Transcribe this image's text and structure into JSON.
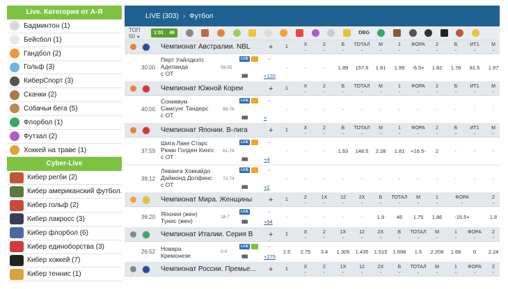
{
  "sidebar": {
    "header": "Live. Категория от А-Я",
    "items": [
      {
        "label": "Бадминтон (1)",
        "icon": "badminton-icon",
        "color": "#d9d9d9"
      },
      {
        "label": "Бейсбол (1)",
        "icon": "baseball-icon",
        "color": "#e8e8e8"
      },
      {
        "label": "Гандбол (2)",
        "icon": "handball-icon",
        "color": "#f09a3a"
      },
      {
        "label": "Гольф (3)",
        "icon": "golf-icon",
        "color": "#6bb6e0"
      },
      {
        "label": "КиберСпорт (3)",
        "icon": "gamepad-icon",
        "color": "#555555"
      },
      {
        "label": "Скачки (2)",
        "icon": "horse-racing-icon",
        "color": "#a57b4a"
      },
      {
        "label": "Собачьи бега (5)",
        "icon": "dog-racing-icon",
        "color": "#b98a56"
      },
      {
        "label": "Флорбол (1)",
        "icon": "floorball-icon",
        "color": "#3aa66a"
      },
      {
        "label": "Футзал (2)",
        "icon": "futsal-icon",
        "color": "#b05cc8"
      },
      {
        "label": "Хоккей на траве (1)",
        "icon": "field-hockey-icon",
        "color": "#e2a33a"
      }
    ],
    "cyber_header": "Cyber-Live",
    "cyber_items": [
      {
        "label": "Кибер регби (2)",
        "icon": "cyber-rugby-icon",
        "color": "#c0563a"
      },
      {
        "label": "Кибер американский футбол...",
        "icon": "cyber-american-football-icon",
        "color": "#5a7a3a"
      },
      {
        "label": "Кибер гольф (2)",
        "icon": "cyber-golf-icon",
        "color": "#c84a3a"
      },
      {
        "label": "Кибер лакросс (3)",
        "icon": "cyber-lacrosse-icon",
        "color": "#3a3a5a"
      },
      {
        "label": "Кибер флорбол (6)",
        "icon": "cyber-floorball-icon",
        "color": "#4a6aa0"
      },
      {
        "label": "Кибер единоборства (3)",
        "icon": "cyber-mma-icon",
        "color": "#d33a3a"
      },
      {
        "label": "Кибер хоккей (7)",
        "icon": "cyber-hockey-icon",
        "color": "#222222"
      },
      {
        "label": "Кибер теннис (1)",
        "icon": "cyber-tennis-icon",
        "color": "#d9a33a"
      }
    ]
  },
  "topbar": {
    "live_label": "LIVE (303)",
    "separator": "›",
    "sport": "Футбол"
  },
  "filterbar": {
    "select_value": "ТОП 50",
    "badge_left": "1:01",
    "badge_right": "46",
    "icons": [
      {
        "name": "soccer-filter-icon",
        "color": "#888888"
      },
      {
        "name": "hockey-stick-filter-icon",
        "color": "#b8694a"
      },
      {
        "name": "basketball-filter-icon",
        "color": "#e8823a"
      },
      {
        "name": "tennis-filter-icon",
        "color": "#9fd14a"
      },
      {
        "name": "handball-filter-icon",
        "color": "#f0c23a"
      },
      {
        "name": "table-tennis-filter-icon",
        "color": "#dddddd"
      },
      {
        "name": "volleyball-filter-icon",
        "color": "#f4a03a"
      },
      {
        "name": "badminton-filter-icon",
        "color": "#e84a3a"
      },
      {
        "name": "futsal-filter-icon",
        "color": "#b05cc8"
      },
      {
        "name": "billiards-filter-icon",
        "color": "#cccccc"
      },
      {
        "name": "cricket-filter-icon",
        "color": "#e2c23a"
      },
      {
        "name": "dbg-filter-icon",
        "color": "#333333",
        "text": "DBG"
      },
      {
        "name": "golf-filter-icon",
        "color": "#3aa66a"
      },
      {
        "name": "racing-filter-icon",
        "color": "#8a5a3a"
      },
      {
        "name": "motorsport-filter-icon",
        "color": "#555555"
      },
      {
        "name": "mma-filter-icon",
        "color": "#333333"
      },
      {
        "name": "rugby-filter-icon",
        "color": "#222222"
      },
      {
        "name": "cycling-filter-icon",
        "color": "#c0563a"
      },
      {
        "name": "star-filter-icon",
        "color": "#e8c23a"
      }
    ]
  },
  "sections": [
    {
      "league": "Чемпионат Австралии. NBL",
      "sport_icon": "basketball-icon",
      "sport_color": "#e8823a",
      "flag_color": "#2b4a9a",
      "columns": [
        "1",
        "X",
        "2",
        "Б",
        "ТОТАЛ",
        "М",
        "1",
        "ФОРА",
        "2",
        "Б",
        "ИТ1",
        "М"
      ],
      "events": [
        {
          "time": "30:00",
          "team1": "Перт Уайлдкэтс",
          "team2": "Аделаида",
          "extra": "с ОТ",
          "score": "59-55",
          "more": "+120",
          "tags": [
            "live",
            "tv"
          ],
          "odds": [
            "-",
            "-",
            "-",
            "1.89",
            "157.5",
            "1.91",
            "1.99",
            "-6.5+",
            "1.82",
            "1.78",
            "81.5",
            "1.97"
          ]
        }
      ]
    },
    {
      "league": "Чемпионат Южной Кореи",
      "sport_icon": "basketball-icon",
      "sport_color": "#e8823a",
      "flag_color": "#d8323a",
      "columns": [
        "1",
        "X",
        "2",
        "Б",
        "ТОТАЛ",
        "М",
        "1",
        "ФОРА",
        "2",
        "Б",
        "ИТ1",
        "М"
      ],
      "events": [
        {
          "time": "40:00",
          "team1": "Сониквум",
          "team2": "Самсунг Тандерс",
          "extra": "с ОТ",
          "score": "88-78",
          "more": "+",
          "tags": [
            "live",
            "tv"
          ],
          "odds": [
            "-",
            "-",
            "-",
            "-",
            "-",
            "-",
            "-",
            "-",
            "-",
            "-",
            "-",
            "-"
          ]
        }
      ]
    },
    {
      "league": "Чемпионат Японии. B-лига",
      "sport_icon": "basketball-icon",
      "sport_color": "#e8823a",
      "flag_color": "#d8323a",
      "columns": [
        "1",
        "X",
        "2",
        "Б",
        "ТОТАЛ",
        "М",
        "1",
        "ФОРА",
        "2",
        "Б",
        "ИТ1",
        "М"
      ],
      "events": [
        {
          "time": "37:59",
          "team1": "Шига Лаке Старс",
          "team2": "Рюкю Голден Кингс",
          "extra": "с ОТ",
          "score": "61-78",
          "more": "+4",
          "tags": [
            "live",
            "tv"
          ],
          "odds": [
            "-",
            "-",
            "-",
            "1.63",
            "148.5",
            "2.28",
            "1.81",
            "+16.5-",
            "2",
            "-",
            "-",
            "-"
          ]
        },
        {
          "time": "39:12",
          "team1": "Леванга Хоккайдо",
          "team2": "Даймонд Долфинс",
          "extra": "с ОТ",
          "score": "72-74",
          "more": "+2",
          "tags": [
            "live",
            "tv"
          ],
          "odds": [
            "-",
            "-",
            "-",
            "-",
            "-",
            "-",
            "-",
            "-",
            "-",
            "-",
            "-",
            "-"
          ]
        }
      ]
    },
    {
      "league": "Чемпионат Мира. Женщины",
      "sport_icon": "volleyball-icon",
      "sport_color": "#f4a03a",
      "flag_color": "#e2c23a",
      "columns": [
        "1",
        "2",
        "1X",
        "12",
        "2X",
        "Б",
        "ТОТАЛ",
        "М",
        "1",
        "ФОРА",
        "2"
      ],
      "events": [
        {
          "time": "36:20",
          "team1": "Япония (жен)",
          "team2": "Тунис (жен)",
          "extra": "",
          "score": "18-7",
          "more": "+94",
          "tags": [
            "live"
          ],
          "odds": [
            "-",
            "-",
            "-",
            "-",
            "-",
            "1.9",
            "46",
            "1.75",
            "1.86",
            "-15.5+",
            "1.8"
          ]
        }
      ]
    },
    {
      "league": "Чемпионат Италии. Серия B",
      "sport_icon": "soccer-icon",
      "sport_color": "#888888",
      "flag_color": "#3aa66a",
      "columns": [
        "1",
        "X",
        "2",
        "1X",
        "12",
        "2X",
        "Б",
        "ТОТАЛ",
        "М",
        "1",
        "ФОРА",
        "2"
      ],
      "events": [
        {
          "time": "26:52",
          "team1": "Новара",
          "team2": "Кремонезе",
          "extra": "",
          "score": "0-0",
          "more": "+275",
          "tags": [
            "live",
            "st"
          ],
          "odds": [
            "2.5",
            "2.75",
            "3.4",
            "1.305",
            "1.435",
            "1.515",
            "1.696",
            "1.5",
            "2.208",
            "1.68",
            "0",
            "2.24"
          ]
        }
      ]
    },
    {
      "league": "Чемпионат России. Премье...",
      "sport_icon": "soccer-icon",
      "sport_color": "#888888",
      "flag_color": "#2b4a9a",
      "columns": [
        "1",
        "X",
        "2",
        "1X",
        "12",
        "2X",
        "Б",
        "ТОТАЛ",
        "М",
        "1",
        "ФОРА",
        "2"
      ],
      "events": []
    }
  ]
}
